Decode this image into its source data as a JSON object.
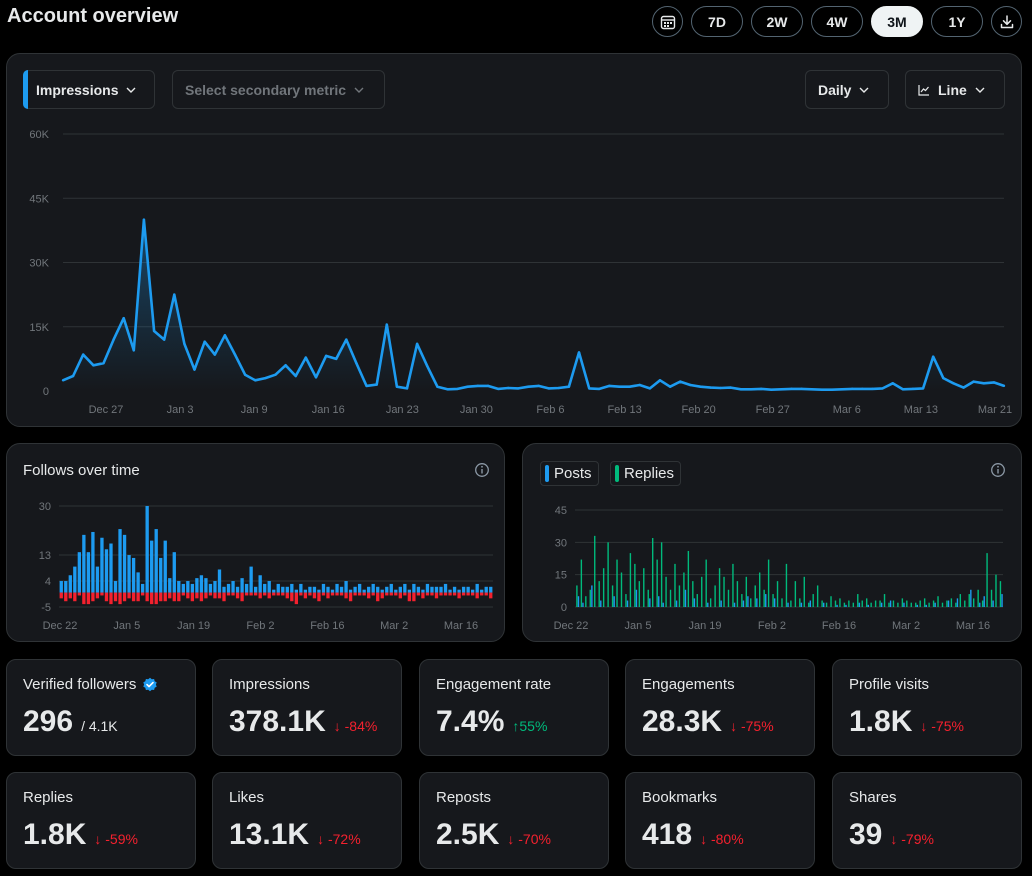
{
  "header": {
    "title": "Account overview"
  },
  "range_buttons": [
    {
      "label": "7D"
    },
    {
      "label": "2W"
    },
    {
      "label": "4W"
    },
    {
      "label": "3M",
      "active": true
    },
    {
      "label": "1Y"
    }
  ],
  "main_chart": {
    "primary_metric": "Impressions",
    "secondary_placeholder": "Select secondary metric",
    "granularity": "Daily",
    "chart_type_label": "Line"
  },
  "follows_card": {
    "title": "Follows over time"
  },
  "posts_card": {
    "legend": [
      {
        "label": "Posts",
        "color": "#1d9bf0"
      },
      {
        "label": "Replies",
        "color": "#00ba7c"
      }
    ]
  },
  "stats_row1": [
    {
      "label": "Verified followers",
      "value": "296",
      "sub": "/ 4.1K",
      "verified": true
    },
    {
      "label": "Impressions",
      "value": "378.1K",
      "delta": "-84%",
      "dir": "down"
    },
    {
      "label": "Engagement rate",
      "value": "7.4%",
      "delta": "55%",
      "dir": "up"
    },
    {
      "label": "Engagements",
      "value": "28.3K",
      "delta": "-75%",
      "dir": "down"
    },
    {
      "label": "Profile visits",
      "value": "1.8K",
      "delta": "-75%",
      "dir": "down"
    }
  ],
  "stats_row2": [
    {
      "label": "Replies",
      "value": "1.8K",
      "delta": "-59%",
      "dir": "down"
    },
    {
      "label": "Likes",
      "value": "13.1K",
      "delta": "-72%",
      "dir": "down"
    },
    {
      "label": "Reposts",
      "value": "2.5K",
      "delta": "-70%",
      "dir": "down"
    },
    {
      "label": "Bookmarks",
      "value": "418",
      "delta": "-80%",
      "dir": "down"
    },
    {
      "label": "Shares",
      "value": "39",
      "delta": "-79%",
      "dir": "down"
    }
  ],
  "colors": {
    "accent": "#1d9bf0",
    "positive": "#00ba7c",
    "negative": "#f4212e"
  },
  "chart_data": [
    {
      "type": "area",
      "series": [
        {
          "name": "Impressions",
          "values": [
            2500,
            3500,
            8500,
            6000,
            6500,
            12000,
            17000,
            9500,
            40000,
            14000,
            12000,
            22500,
            11000,
            5000,
            11500,
            8500,
            13000,
            8500,
            3800,
            2500,
            3000,
            3800,
            6000,
            3500,
            7800,
            3200,
            8200,
            7500,
            12000,
            6500,
            1200,
            1500,
            15500,
            1000,
            600,
            11000,
            5800,
            1000,
            400,
            500,
            1000,
            1200,
            1200,
            500,
            700,
            600,
            1000,
            1200,
            600,
            700,
            1000,
            9000,
            600,
            500,
            1200,
            1000,
            1000,
            1400,
            600,
            2500,
            1000,
            2200,
            1400,
            1000,
            800,
            700,
            800,
            400,
            400,
            500,
            300,
            400,
            500,
            500,
            400,
            300,
            300,
            400,
            500,
            500,
            500,
            600,
            1800,
            400,
            500,
            600,
            8000,
            3000,
            1800,
            800,
            2200,
            1800,
            2000,
            1200
          ]
        }
      ],
      "x_tick_labels": [
        "Dec 27",
        "Jan 3",
        "Jan 9",
        "Jan 16",
        "Jan 23",
        "Jan 30",
        "Feb 6",
        "Feb 13",
        "Feb 20",
        "Feb 27",
        "Mar 6",
        "Mar 13",
        "Mar 21"
      ],
      "y_tick_labels": [
        "60K",
        "45K",
        "30K",
        "15K",
        "0"
      ],
      "ylim": [
        0,
        60000
      ],
      "grid": true
    },
    {
      "type": "bar",
      "series": [
        {
          "name": "Follows",
          "values": [
            4,
            4,
            6,
            9,
            14,
            20,
            14,
            21,
            9,
            19,
            15,
            17,
            4,
            22,
            20,
            13,
            12,
            7,
            3,
            30,
            18,
            22,
            12,
            18,
            5,
            14,
            4,
            3,
            4,
            3,
            5,
            6,
            5,
            3,
            4,
            8,
            2,
            3,
            4,
            2,
            5,
            3,
            9,
            2,
            6,
            3,
            4,
            1,
            3,
            2,
            2,
            3,
            1,
            3,
            1,
            2,
            2,
            1,
            3,
            2,
            1,
            3,
            2,
            4,
            1,
            2,
            3,
            1,
            2,
            3,
            2,
            1,
            2,
            3,
            1,
            2,
            3,
            1,
            3,
            2,
            1,
            3,
            2,
            2,
            2,
            3,
            1,
            2,
            1,
            2,
            2,
            1,
            3,
            1,
            2,
            2
          ]
        },
        {
          "name": "Unfollows",
          "values": [
            -2,
            -3,
            -2,
            -3,
            -1,
            -4,
            -4,
            -3,
            -2,
            -1,
            -3,
            -4,
            -3,
            -4,
            -3,
            -2,
            -3,
            -3,
            -1,
            -3,
            -4,
            -4,
            -3,
            -3,
            -2,
            -3,
            -3,
            -1,
            -2,
            -3,
            -2,
            -3,
            -2,
            -1,
            -2,
            -2,
            -3,
            -1,
            -1,
            -2,
            -3,
            -1,
            -1,
            -1,
            -2,
            -1,
            -2,
            -1,
            -1,
            -1,
            -2,
            -3,
            -4,
            -1,
            -2,
            -1,
            -2,
            -3,
            -1,
            -2,
            -1,
            -1,
            -1,
            -2,
            -3,
            -1,
            -1,
            -1,
            -2,
            -1,
            -3,
            -2,
            -1,
            -1,
            -1,
            -2,
            -1,
            -3,
            -3,
            -1,
            -2,
            -1,
            -1,
            -2,
            -1,
            -1,
            -1,
            -1,
            -2,
            -1,
            -1,
            -1,
            -2,
            -1,
            -1,
            -2
          ]
        }
      ],
      "x_tick_labels": [
        "Dec 22",
        "Jan 5",
        "Jan 19",
        "Feb 2",
        "Feb 16",
        "Mar 2",
        "Mar 16"
      ],
      "y_tick_labels": [
        "30",
        "13",
        "4",
        "-5"
      ],
      "ylim": [
        -5,
        30
      ],
      "grid": true
    },
    {
      "type": "bar",
      "series": [
        {
          "name": "Posts",
          "values": [
            5,
            2,
            0,
            10,
            0,
            3,
            0,
            0,
            5,
            0,
            0,
            3,
            0,
            8,
            0,
            0,
            4,
            0,
            5,
            2,
            0,
            0,
            3,
            0,
            8,
            0,
            4,
            0,
            0,
            2,
            0,
            0,
            3,
            0,
            0,
            2,
            0,
            3,
            5,
            0,
            4,
            0,
            6,
            0,
            4,
            0,
            0,
            2,
            0,
            0,
            2,
            0,
            3,
            0,
            0,
            2,
            0,
            0,
            1,
            0,
            1,
            0,
            0,
            2,
            0,
            1,
            0,
            0,
            2,
            0,
            3,
            0,
            0,
            2,
            0,
            0,
            1,
            0,
            1,
            0,
            2,
            0,
            0,
            3,
            0,
            4,
            0,
            0,
            8,
            0,
            2,
            5,
            0,
            3,
            0,
            6
          ]
        },
        {
          "name": "Replies",
          "values": [
            10,
            22,
            5,
            8,
            33,
            12,
            18,
            30,
            10,
            22,
            16,
            6,
            25,
            20,
            12,
            18,
            8,
            32,
            22,
            30,
            14,
            8,
            20,
            10,
            16,
            26,
            12,
            6,
            14,
            22,
            4,
            10,
            18,
            14,
            8,
            20,
            12,
            6,
            14,
            4,
            10,
            16,
            8,
            22,
            6,
            12,
            4,
            20,
            3,
            12,
            4,
            14,
            2,
            6,
            10,
            3,
            2,
            5,
            3,
            4,
            2,
            3,
            2,
            6,
            3,
            4,
            2,
            3,
            3,
            6,
            2,
            3,
            2,
            4,
            3,
            2,
            2,
            3,
            4,
            2,
            3,
            5,
            2,
            3,
            4,
            2,
            6,
            3,
            6,
            4,
            8,
            3,
            25,
            8,
            15,
            12
          ]
        }
      ],
      "x_tick_labels": [
        "Dec 22",
        "Jan 5",
        "Jan 19",
        "Feb 2",
        "Feb 16",
        "Mar 2",
        "Mar 16"
      ],
      "y_tick_labels": [
        "45",
        "30",
        "15",
        "0"
      ],
      "ylim": [
        0,
        45
      ],
      "grid": true
    }
  ]
}
